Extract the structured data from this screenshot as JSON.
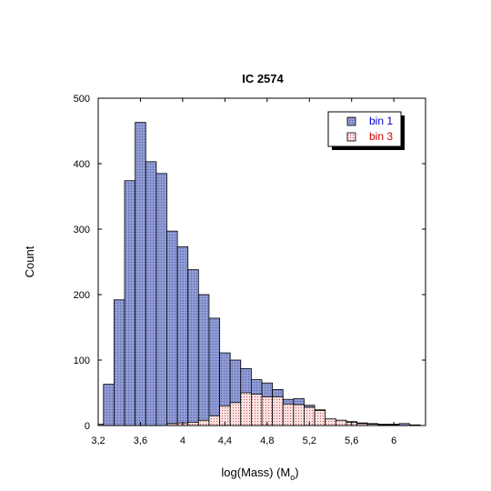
{
  "chart_data": {
    "type": "bar",
    "title": "IC 2574",
    "xlabel": "log(Mass) (M",
    "xlabel_sub": "o",
    "xlabel_close": ")",
    "ylabel": "Count",
    "xlim": [
      3.2,
      6.3
    ],
    "ylim": [
      0,
      500
    ],
    "xticks": [
      3.2,
      3.6,
      4.0,
      4.4,
      4.8,
      5.2,
      5.6,
      6.0
    ],
    "xtick_labels": [
      "3,2",
      "3,6",
      "4",
      "4,4",
      "4,8",
      "5,2",
      "5,6",
      "6"
    ],
    "yticks": [
      0,
      100,
      200,
      300,
      400,
      500
    ],
    "ytick_labels": [
      "0",
      "100",
      "200",
      "300",
      "400",
      "500"
    ],
    "bin_width": 0.1,
    "legend_position": "top-right",
    "series": [
      {
        "name": "bin 1",
        "color": "#8f9ad3",
        "text_color": "#0000cc",
        "bins": [
          {
            "x0": 3.2,
            "count": 2
          },
          {
            "x0": 3.25,
            "count": 63
          },
          {
            "x0": 3.35,
            "count": 192
          },
          {
            "x0": 3.45,
            "count": 374
          },
          {
            "x0": 3.55,
            "count": 463
          },
          {
            "x0": 3.65,
            "count": 403
          },
          {
            "x0": 3.75,
            "count": 385
          },
          {
            "x0": 3.85,
            "count": 297
          },
          {
            "x0": 3.95,
            "count": 273
          },
          {
            "x0": 4.05,
            "count": 238
          },
          {
            "x0": 4.15,
            "count": 200
          },
          {
            "x0": 4.25,
            "count": 164
          },
          {
            "x0": 4.35,
            "count": 111
          },
          {
            "x0": 4.45,
            "count": 100
          },
          {
            "x0": 4.55,
            "count": 87
          },
          {
            "x0": 4.65,
            "count": 70
          },
          {
            "x0": 4.75,
            "count": 65
          },
          {
            "x0": 4.85,
            "count": 55
          },
          {
            "x0": 4.95,
            "count": 40
          },
          {
            "x0": 5.05,
            "count": 41
          },
          {
            "x0": 5.15,
            "count": 31
          },
          {
            "x0": 5.25,
            "count": 24
          },
          {
            "x0": 5.35,
            "count": 10
          },
          {
            "x0": 5.45,
            "count": 8
          },
          {
            "x0": 5.55,
            "count": 6
          },
          {
            "x0": 5.65,
            "count": 4
          },
          {
            "x0": 5.75,
            "count": 3
          },
          {
            "x0": 5.85,
            "count": 2
          },
          {
            "x0": 5.95,
            "count": 2
          },
          {
            "x0": 6.05,
            "count": 3
          },
          {
            "x0": 6.15,
            "count": 1
          }
        ]
      },
      {
        "name": "bin 3",
        "color": "#f2c9c9",
        "text_color": "#cc0000",
        "bins": [
          {
            "x0": 3.85,
            "count": 3
          },
          {
            "x0": 3.95,
            "count": 4
          },
          {
            "x0": 4.05,
            "count": 5
          },
          {
            "x0": 4.15,
            "count": 8
          },
          {
            "x0": 4.25,
            "count": 15
          },
          {
            "x0": 4.35,
            "count": 30
          },
          {
            "x0": 4.45,
            "count": 35
          },
          {
            "x0": 4.55,
            "count": 50
          },
          {
            "x0": 4.65,
            "count": 48
          },
          {
            "x0": 4.75,
            "count": 44
          },
          {
            "x0": 4.85,
            "count": 44
          },
          {
            "x0": 4.95,
            "count": 33
          },
          {
            "x0": 5.05,
            "count": 32
          },
          {
            "x0": 5.15,
            "count": 28
          },
          {
            "x0": 5.25,
            "count": 23
          },
          {
            "x0": 5.35,
            "count": 10
          },
          {
            "x0": 5.45,
            "count": 8
          },
          {
            "x0": 5.55,
            "count": 5
          },
          {
            "x0": 5.65,
            "count": 3
          },
          {
            "x0": 5.75,
            "count": 2
          },
          {
            "x0": 5.85,
            "count": 1
          },
          {
            "x0": 5.95,
            "count": 1
          }
        ]
      }
    ]
  }
}
